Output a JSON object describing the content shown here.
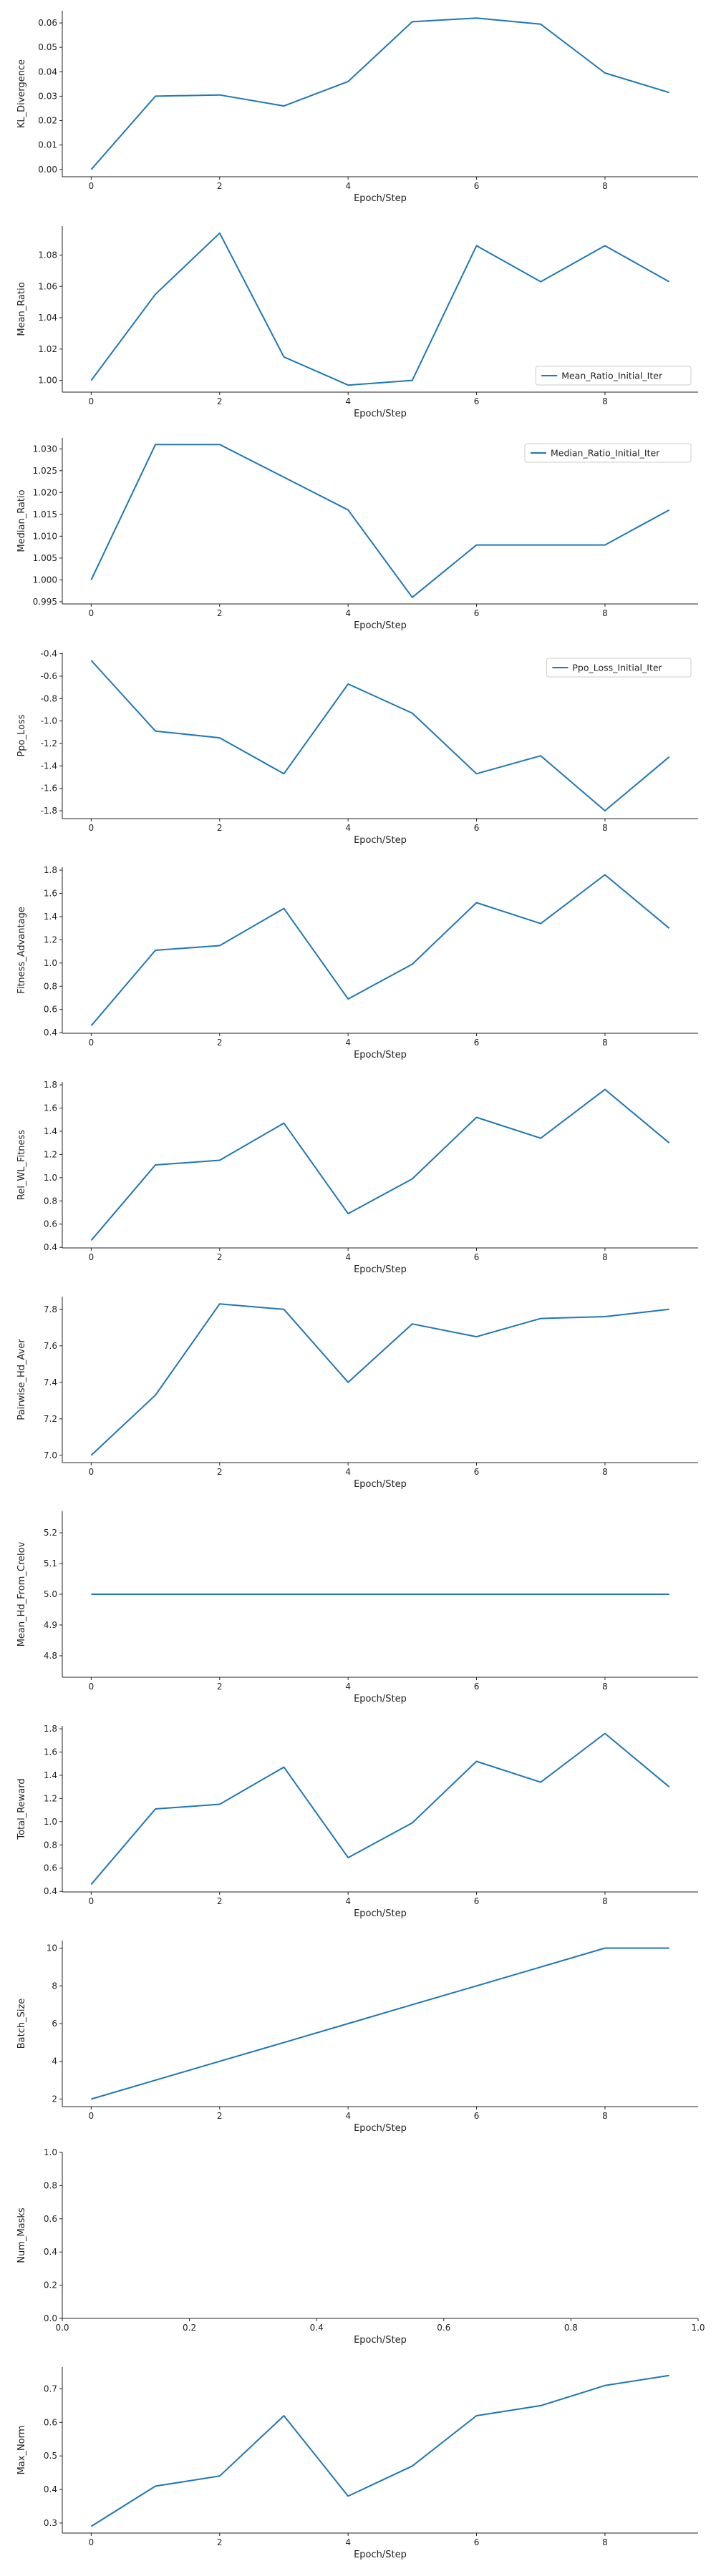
{
  "colors": {
    "series": "#1f77b4",
    "axis": "#222222",
    "legend_border": "#cccccc"
  },
  "chart_data": [
    {
      "type": "line",
      "xlabel": "Epoch/Step",
      "ylabel": "KL_Divergence",
      "x": [
        0,
        1,
        2,
        3,
        4,
        5,
        6,
        7,
        8,
        9
      ],
      "series": [
        {
          "values": [
            0.0,
            0.03,
            0.0305,
            0.026,
            0.036,
            0.0605,
            0.062,
            0.0595,
            0.0395,
            0.0315
          ]
        }
      ],
      "xlim": [
        -0.45,
        9.45
      ],
      "ylim": [
        -0.003,
        0.065
      ],
      "xticks": [
        "0",
        "2",
        "4",
        "6",
        "8"
      ],
      "yticks": [
        "0.00",
        "0.01",
        "0.02",
        "0.03",
        "0.04",
        "0.05",
        "0.06"
      ],
      "legend": null,
      "grid": false
    },
    {
      "type": "line",
      "xlabel": "Epoch/Step",
      "ylabel": "Mean_Ratio",
      "x": [
        0,
        1,
        2,
        3,
        4,
        5,
        6,
        7,
        8,
        9
      ],
      "series": [
        {
          "name": "Mean_Ratio_Initial_Iter",
          "values": [
            1.0,
            1.055,
            1.094,
            1.015,
            0.997,
            1.0,
            1.086,
            1.063,
            1.086,
            1.063
          ]
        }
      ],
      "xlim": [
        -0.45,
        9.45
      ],
      "ylim": [
        0.9925,
        1.0985
      ],
      "xticks": [
        "0",
        "2",
        "4",
        "6",
        "8"
      ],
      "yticks": [
        "1.00",
        "1.02",
        "1.04",
        "1.06",
        "1.08"
      ],
      "legend": "lower-right",
      "grid": false
    },
    {
      "type": "line",
      "xlabel": "Epoch/Step",
      "ylabel": "Median_Ratio",
      "x": [
        0,
        1,
        2,
        3,
        4,
        5,
        6,
        7,
        8,
        9
      ],
      "series": [
        {
          "name": "Median_Ratio_Initial_Iter",
          "values": [
            1.0,
            1.031,
            1.031,
            1.0235,
            1.016,
            0.996,
            1.008,
            1.008,
            1.008,
            1.016
          ]
        }
      ],
      "xlim": [
        -0.45,
        9.45
      ],
      "ylim": [
        0.9945,
        1.0325
      ],
      "xticks": [
        "0",
        "2",
        "4",
        "6",
        "8"
      ],
      "yticks": [
        "0.995",
        "1.000",
        "1.005",
        "1.010",
        "1.015",
        "1.020",
        "1.025",
        "1.030"
      ],
      "legend": "upper-right",
      "grid": false
    },
    {
      "type": "line",
      "xlabel": "Epoch/Step",
      "ylabel": "Ppo_Loss",
      "x": [
        0,
        1,
        2,
        3,
        4,
        5,
        6,
        7,
        8,
        9
      ],
      "series": [
        {
          "name": "Ppo_Loss_Initial_Iter",
          "values": [
            -0.46,
            -1.09,
            -1.15,
            -1.47,
            -0.67,
            -0.93,
            -1.47,
            -1.31,
            -1.8,
            -1.32
          ]
        }
      ],
      "xlim": [
        -0.45,
        9.45
      ],
      "ylim": [
        -1.87,
        -0.39
      ],
      "xticks": [
        "0",
        "2",
        "4",
        "6",
        "8"
      ],
      "yticks": [
        "-1.8",
        "-1.6",
        "-1.4",
        "-1.2",
        "-1.0",
        "-0.8",
        "-0.6",
        "-0.4"
      ],
      "legend": "upper-right",
      "grid": false
    },
    {
      "type": "line",
      "xlabel": "Epoch/Step",
      "ylabel": "Fitness_Advantage",
      "x": [
        0,
        1,
        2,
        3,
        4,
        5,
        6,
        7,
        8,
        9
      ],
      "series": [
        {
          "values": [
            0.46,
            1.11,
            1.15,
            1.47,
            0.69,
            0.99,
            1.52,
            1.34,
            1.76,
            1.3
          ]
        }
      ],
      "xlim": [
        -0.45,
        9.45
      ],
      "ylim": [
        0.395,
        1.825
      ],
      "xticks": [
        "0",
        "2",
        "4",
        "6",
        "8"
      ],
      "yticks": [
        "0.4",
        "0.6",
        "0.8",
        "1.0",
        "1.2",
        "1.4",
        "1.6",
        "1.8"
      ],
      "legend": null,
      "grid": false
    },
    {
      "type": "line",
      "xlabel": "Epoch/Step",
      "ylabel": "Rel_WL_Fitness",
      "x": [
        0,
        1,
        2,
        3,
        4,
        5,
        6,
        7,
        8,
        9
      ],
      "series": [
        {
          "values": [
            0.46,
            1.11,
            1.15,
            1.47,
            0.69,
            0.99,
            1.52,
            1.34,
            1.76,
            1.3
          ]
        }
      ],
      "xlim": [
        -0.45,
        9.45
      ],
      "ylim": [
        0.395,
        1.825
      ],
      "xticks": [
        "0",
        "2",
        "4",
        "6",
        "8"
      ],
      "yticks": [
        "0.4",
        "0.6",
        "0.8",
        "1.0",
        "1.2",
        "1.4",
        "1.6",
        "1.8"
      ],
      "legend": null,
      "grid": false
    },
    {
      "type": "line",
      "xlabel": "Epoch/Step",
      "ylabel": "Pairwise_Hd_Aver",
      "x": [
        0,
        1,
        2,
        3,
        4,
        5,
        6,
        7,
        8,
        9
      ],
      "series": [
        {
          "values": [
            7.0,
            7.33,
            7.83,
            7.8,
            7.4,
            7.72,
            7.65,
            7.75,
            7.76,
            7.8
          ]
        }
      ],
      "xlim": [
        -0.45,
        9.45
      ],
      "ylim": [
        6.96,
        7.87
      ],
      "xticks": [
        "0",
        "2",
        "4",
        "6",
        "8"
      ],
      "yticks": [
        "7.0",
        "7.2",
        "7.4",
        "7.6",
        "7.8"
      ],
      "legend": null,
      "grid": false
    },
    {
      "type": "line",
      "xlabel": "Epoch/Step",
      "ylabel": "Mean_Hd_From_Crelov",
      "x": [
        0,
        1,
        2,
        3,
        4,
        5,
        6,
        7,
        8,
        9
      ],
      "series": [
        {
          "values": [
            5.0,
            5.0,
            5.0,
            5.0,
            5.0,
            5.0,
            5.0,
            5.0,
            5.0,
            5.0
          ]
        }
      ],
      "xlim": [
        -0.45,
        9.45
      ],
      "ylim": [
        4.73,
        5.27
      ],
      "xticks": [
        "0",
        "2",
        "4",
        "6",
        "8"
      ],
      "yticks": [
        "4.8",
        "4.9",
        "5.0",
        "5.1",
        "5.2"
      ],
      "legend": null,
      "grid": false
    },
    {
      "type": "line",
      "xlabel": "Epoch/Step",
      "ylabel": "Total_Reward",
      "x": [
        0,
        1,
        2,
        3,
        4,
        5,
        6,
        7,
        8,
        9
      ],
      "series": [
        {
          "values": [
            0.46,
            1.11,
            1.15,
            1.47,
            0.69,
            0.99,
            1.52,
            1.34,
            1.76,
            1.3
          ]
        }
      ],
      "xlim": [
        -0.45,
        9.45
      ],
      "ylim": [
        0.395,
        1.825
      ],
      "xticks": [
        "0",
        "2",
        "4",
        "6",
        "8"
      ],
      "yticks": [
        "0.4",
        "0.6",
        "0.8",
        "1.0",
        "1.2",
        "1.4",
        "1.6",
        "1.8"
      ],
      "legend": null,
      "grid": false
    },
    {
      "type": "line",
      "xlabel": "Epoch/Step",
      "ylabel": "Batch_Size",
      "x": [
        0,
        1,
        2,
        3,
        4,
        5,
        6,
        7,
        8,
        9
      ],
      "series": [
        {
          "values": [
            2,
            3,
            4,
            5,
            6,
            7,
            8,
            9,
            10,
            10
          ]
        }
      ],
      "xlim": [
        -0.45,
        9.45
      ],
      "ylim": [
        1.6,
        10.4
      ],
      "xticks": [
        "0",
        "2",
        "4",
        "6",
        "8"
      ],
      "yticks": [
        "2",
        "4",
        "6",
        "8",
        "10"
      ],
      "legend": null,
      "grid": false
    },
    {
      "type": "line",
      "xlabel": "Epoch/Step",
      "ylabel": "Num_Masks",
      "x": [],
      "series": [],
      "xlim": [
        0.0,
        1.0
      ],
      "ylim": [
        0.0,
        1.0
      ],
      "xticks": [
        "0.0",
        "0.2",
        "0.4",
        "0.6",
        "0.8",
        "1.0"
      ],
      "yticks": [
        "0.0",
        "0.2",
        "0.4",
        "0.6",
        "0.8",
        "1.0"
      ],
      "legend": null,
      "grid": false
    },
    {
      "type": "line",
      "xlabel": "Epoch/Step",
      "ylabel": "Max_Norm",
      "x": [
        0,
        1,
        2,
        3,
        4,
        5,
        6,
        7,
        8,
        9
      ],
      "series": [
        {
          "values": [
            0.29,
            0.41,
            0.44,
            0.62,
            0.38,
            0.47,
            0.62,
            0.65,
            0.71,
            0.74
          ]
        }
      ],
      "xlim": [
        -0.45,
        9.45
      ],
      "ylim": [
        0.27,
        0.765
      ],
      "xticks": [
        "0",
        "2",
        "4",
        "6",
        "8"
      ],
      "yticks": [
        "0.3",
        "0.4",
        "0.5",
        "0.6",
        "0.7"
      ],
      "legend": null,
      "grid": false
    }
  ]
}
